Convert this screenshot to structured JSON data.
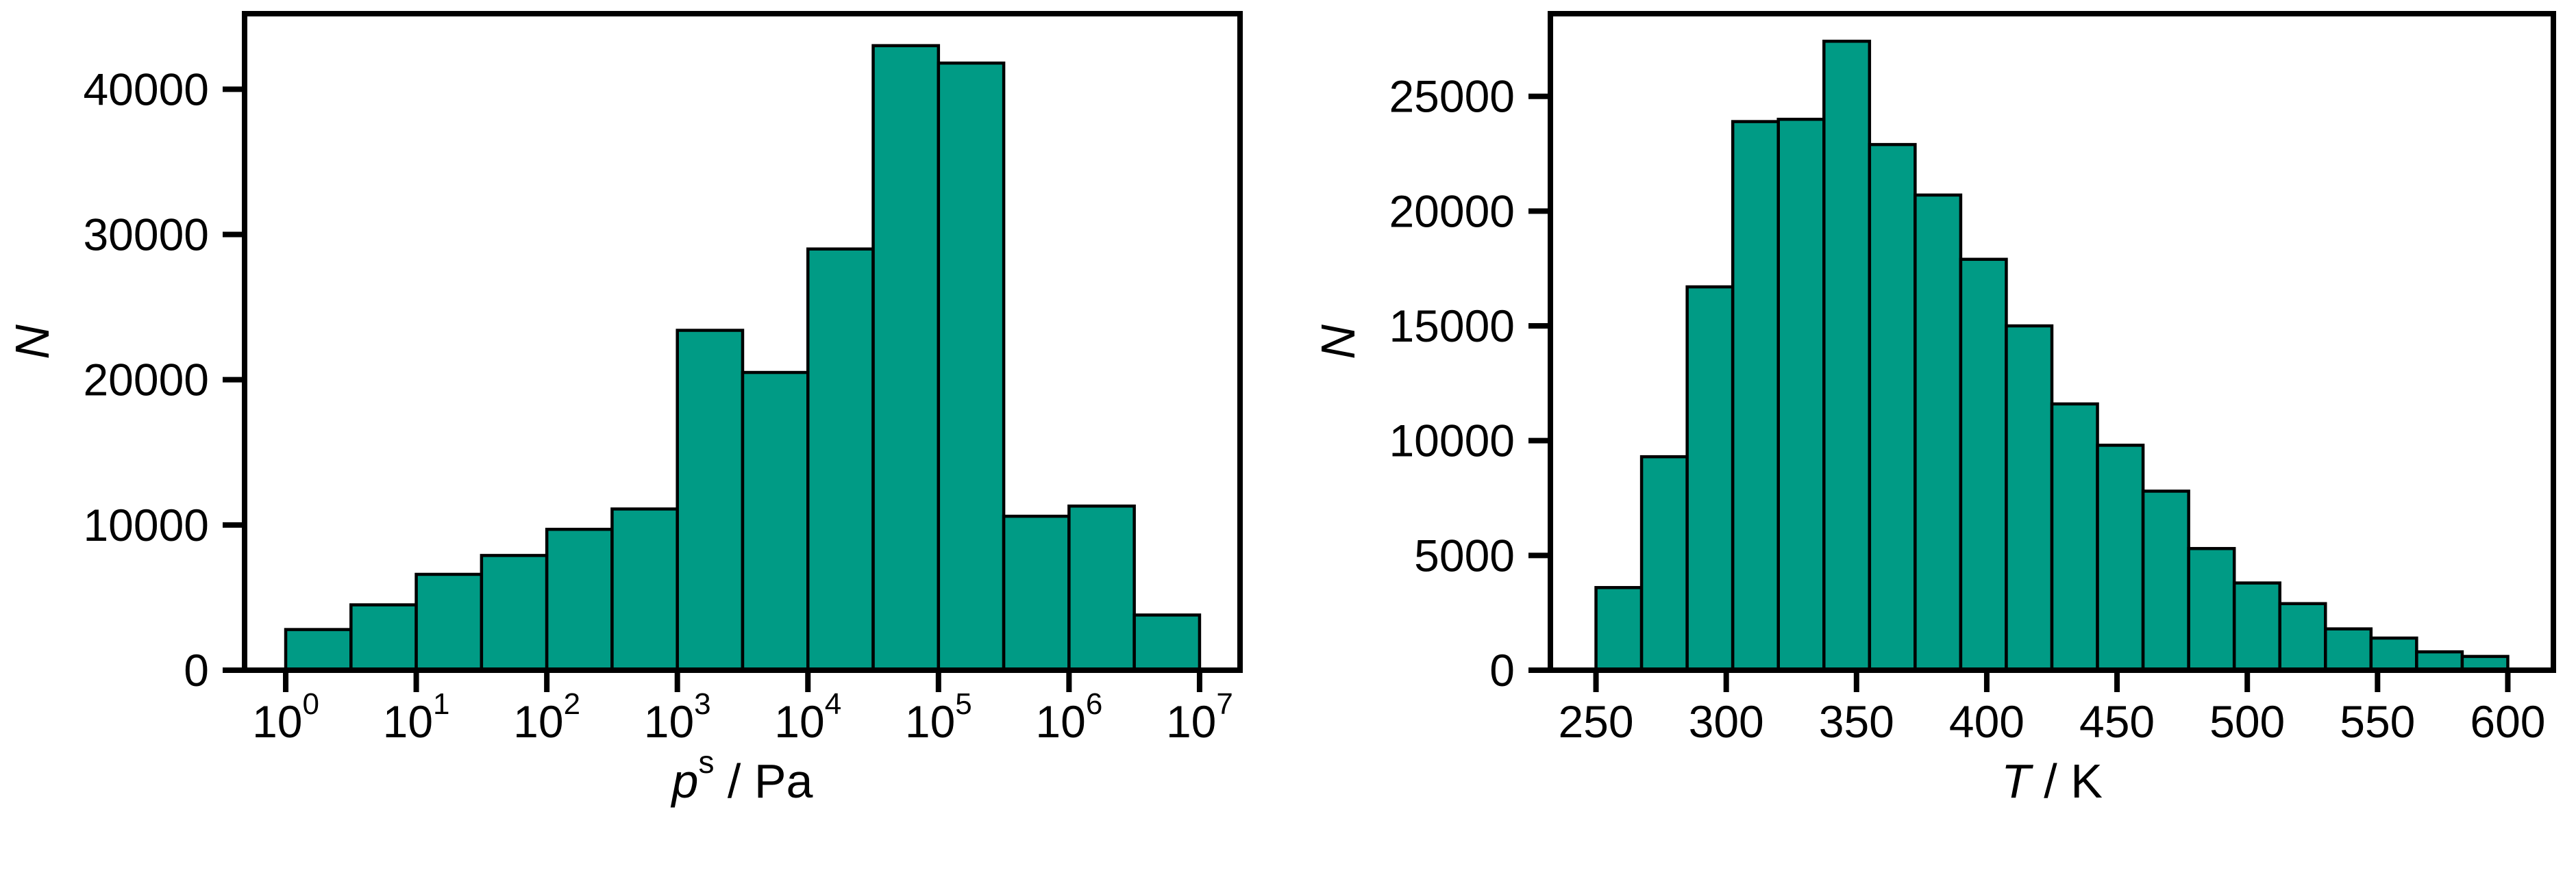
{
  "figure": {
    "background": "#ffffff",
    "bar_fill": "#009b85",
    "bar_edge": "#000000",
    "axis_color": "#000000"
  },
  "chart_data": [
    {
      "type": "bar",
      "name": "pressure-histogram",
      "title": "",
      "x_scale": "log10",
      "xlabel_parts": [
        {
          "text": "p",
          "italic": true
        },
        {
          "text": "s",
          "sup": true
        },
        {
          "text": " / Pa"
        }
      ],
      "ylabel_parts": [
        {
          "text": "N",
          "italic": true
        }
      ],
      "xlim_log10": [
        -0.315,
        7.31
      ],
      "ylim": [
        0,
        45200
      ],
      "grid": false,
      "legend": null,
      "bins": {
        "start": 0,
        "step": 0.5,
        "unit": "log10(Pa)"
      },
      "values": [
        2800,
        4500,
        6600,
        7900,
        9700,
        11100,
        23400,
        20500,
        29000,
        43000,
        41800,
        10600,
        11300,
        3800
      ],
      "x_ticks": [
        {
          "pos": 0,
          "base": "10",
          "sup": "0"
        },
        {
          "pos": 1,
          "base": "10",
          "sup": "1"
        },
        {
          "pos": 2,
          "base": "10",
          "sup": "2"
        },
        {
          "pos": 3,
          "base": "10",
          "sup": "3"
        },
        {
          "pos": 4,
          "base": "10",
          "sup": "4"
        },
        {
          "pos": 5,
          "base": "10",
          "sup": "5"
        },
        {
          "pos": 6,
          "base": "10",
          "sup": "6"
        },
        {
          "pos": 7,
          "base": "10",
          "sup": "7"
        }
      ],
      "y_ticks": [
        {
          "pos": 0,
          "label": "0"
        },
        {
          "pos": 10000,
          "label": "10000"
        },
        {
          "pos": 20000,
          "label": "20000"
        },
        {
          "pos": 30000,
          "label": "30000"
        },
        {
          "pos": 40000,
          "label": "40000"
        }
      ]
    },
    {
      "type": "bar",
      "name": "temperature-histogram",
      "title": "",
      "x_scale": "linear",
      "xlabel_parts": [
        {
          "text": "T",
          "italic": true
        },
        {
          "text": " / K"
        }
      ],
      "ylabel_parts": [
        {
          "text": "N",
          "italic": true
        }
      ],
      "xlim": [
        232.5,
        617.5
      ],
      "ylim": [
        0,
        28600
      ],
      "grid": false,
      "legend": null,
      "bins": {
        "start": 250,
        "step": 17.5,
        "unit": "K"
      },
      "values": [
        3600,
        9300,
        16700,
        23900,
        24000,
        27400,
        22900,
        20700,
        17900,
        15000,
        11600,
        9800,
        7800,
        5300,
        3800,
        2900,
        1800,
        1400,
        800,
        600
      ],
      "x_ticks": [
        {
          "pos": 250,
          "label": "250"
        },
        {
          "pos": 300,
          "label": "300"
        },
        {
          "pos": 350,
          "label": "350"
        },
        {
          "pos": 400,
          "label": "400"
        },
        {
          "pos": 450,
          "label": "450"
        },
        {
          "pos": 500,
          "label": "500"
        },
        {
          "pos": 550,
          "label": "550"
        },
        {
          "pos": 600,
          "label": "600"
        }
      ],
      "y_ticks": [
        {
          "pos": 0,
          "label": "0"
        },
        {
          "pos": 5000,
          "label": "5000"
        },
        {
          "pos": 10000,
          "label": "10000"
        },
        {
          "pos": 15000,
          "label": "15000"
        },
        {
          "pos": 20000,
          "label": "20000"
        },
        {
          "pos": 25000,
          "label": "25000"
        }
      ]
    }
  ]
}
